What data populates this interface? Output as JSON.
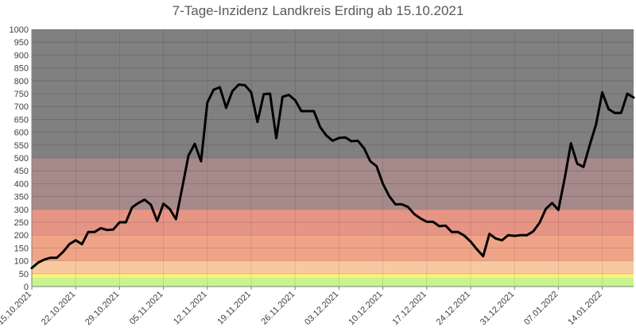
{
  "chart_data": {
    "type": "line",
    "title": "7-Tage-Inzidenz Landkreis Erding ab 15.10.2021",
    "xlabel": "",
    "ylabel": "",
    "ylim": [
      0,
      1000
    ],
    "grid": true,
    "legend": "none",
    "yticks": [
      0,
      50,
      100,
      150,
      200,
      250,
      300,
      350,
      400,
      450,
      500,
      550,
      600,
      650,
      700,
      750,
      800,
      850,
      900,
      950,
      1000
    ],
    "xticks": [
      {
        "day": 0,
        "label": "15.10.2021"
      },
      {
        "day": 7,
        "label": "22.10.2021"
      },
      {
        "day": 14,
        "label": "29.10.2021"
      },
      {
        "day": 21,
        "label": "05.11.2021"
      },
      {
        "day": 28,
        "label": "12.11.2021"
      },
      {
        "day": 35,
        "label": "19.11.2021"
      },
      {
        "day": 42,
        "label": "26.11.2021"
      },
      {
        "day": 49,
        "label": "03.12.2021"
      },
      {
        "day": 56,
        "label": "10.12.2021"
      },
      {
        "day": 63,
        "label": "17.12.2021"
      },
      {
        "day": 70,
        "label": "24.12.2021"
      },
      {
        "day": 77,
        "label": "31.12.2021"
      },
      {
        "day": 84,
        "label": "07.01.2022"
      },
      {
        "day": 91,
        "label": "14.01.2022"
      }
    ],
    "bands": [
      {
        "from": 0,
        "to": 35,
        "color": "#c6f58f"
      },
      {
        "from": 35,
        "to": 50,
        "color": "#fff07a"
      },
      {
        "from": 50,
        "to": 100,
        "color": "#f8c9a0"
      },
      {
        "from": 100,
        "to": 200,
        "color": "#f0a487"
      },
      {
        "from": 200,
        "to": 300,
        "color": "#e69585"
      },
      {
        "from": 300,
        "to": 500,
        "color": "#a68a8a"
      },
      {
        "from": 500,
        "to": 1000,
        "color": "#808080"
      }
    ],
    "line_color": "#000000",
    "series": [
      {
        "name": "",
        "values": [
          72,
          93,
          105,
          112,
          112,
          135,
          165,
          180,
          165,
          212,
          212,
          227,
          220,
          222,
          250,
          250,
          308,
          325,
          338,
          318,
          255,
          322,
          302,
          262,
          385,
          510,
          555,
          487,
          715,
          765,
          775,
          695,
          760,
          785,
          783,
          755,
          640,
          748,
          750,
          577,
          738,
          745,
          725,
          682,
          682,
          682,
          620,
          587,
          567,
          578,
          580,
          565,
          567,
          538,
          487,
          468,
          400,
          352,
          320,
          320,
          310,
          282,
          265,
          252,
          252,
          235,
          237,
          212,
          212,
          198,
          175,
          145,
          118,
          205,
          187,
          180,
          200,
          197,
          200,
          200,
          215,
          248,
          302,
          325,
          298,
          420,
          557,
          478,
          465,
          550,
          630,
          755,
          690,
          675,
          675,
          750,
          735
        ]
      }
    ]
  }
}
